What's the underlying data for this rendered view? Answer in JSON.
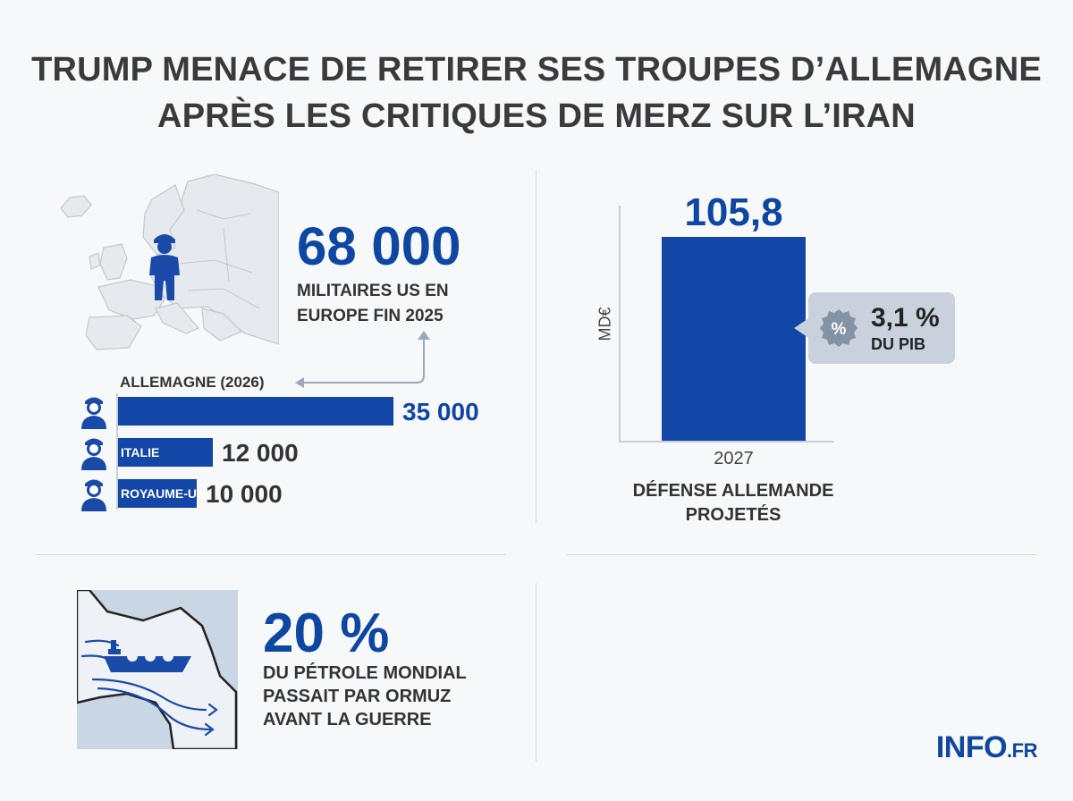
{
  "title_line1": "TRUMP MENACE DE RETIRER SES TROUPES D’ALLEMAGNE",
  "title_line2": "APRÈS LES CRITIQUES DE MERZ SUR L’IRAN",
  "europe": {
    "value": "68 000",
    "caption_line1": "MILITAIRES US EN",
    "caption_line2": "EUROPE FIN 2025"
  },
  "troops_chart": {
    "chart_data": {
      "type": "bar",
      "orientation": "horizontal",
      "categories": [
        "ALLEMAGNE (2026)",
        "ITALIE",
        "ROYAUME-UNI"
      ],
      "values": [
        35000,
        12000,
        10000
      ],
      "value_labels": [
        "35 000",
        "12 000",
        "10 000"
      ],
      "color": "#1246a7"
    }
  },
  "defense_chart": {
    "chart_data": {
      "type": "bar",
      "categories": [
        "2027"
      ],
      "values": [
        105.8
      ],
      "value_labels": [
        "105,8"
      ],
      "ylabel": "MD€",
      "color": "#1246a7"
    },
    "badge_value": "3,1 %",
    "badge_caption": "DU PIB",
    "badge_icon": "%",
    "caption_line1": "DÉFENSE ALLEMANDE",
    "caption_line2": "PROJETÉS"
  },
  "oil": {
    "value": "20 %",
    "caption_line1": "DU PÉTROLE MONDIAL",
    "caption_line2": "PASSAIT PAR ORMUZ",
    "caption_line3": "AVANT LA GUERRE"
  },
  "brand": {
    "main": "INFO",
    "suffix": ".FR"
  }
}
